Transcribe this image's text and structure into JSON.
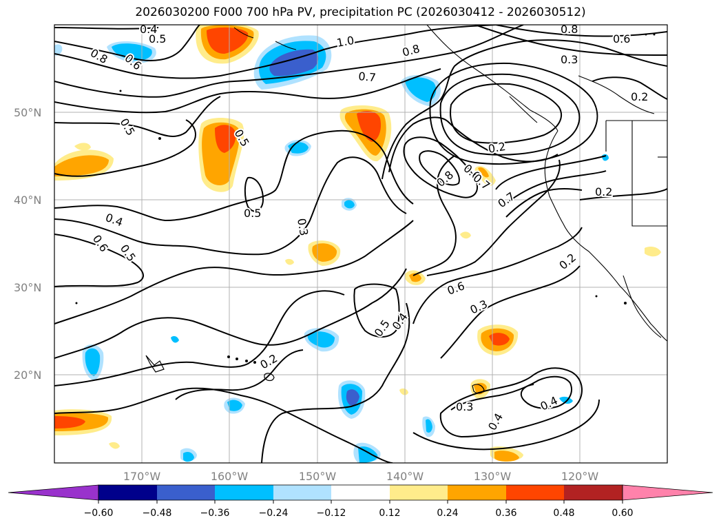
{
  "title": "2026030200 F000 700 hPa PV, precipitation PC (2026030412 - 2026030512)",
  "lat_labels": [
    "50°N",
    "40°N",
    "30°N",
    "20°N"
  ],
  "lon_labels": [
    "170°W",
    "160°W",
    "150°W",
    "140°W",
    "130°W",
    "120°W"
  ],
  "colorbar": {
    "ticks": [
      "−0.60",
      "−0.48",
      "−0.36",
      "−0.24",
      "−0.12",
      "0.12",
      "0.24",
      "0.36",
      "0.48",
      "0.60"
    ],
    "colors": [
      "#9932cc",
      "#00008b",
      "#3a5fcd",
      "#00bfff",
      "#b0e2ff",
      "#ffffff",
      "#ffec8b",
      "#ffa500",
      "#ff4500",
      "#b22222",
      "#ff82ab"
    ]
  },
  "contour_labels": [
    "0.4",
    "0.5",
    "0.8",
    "0.6",
    "1.0",
    "0.8",
    "0.8",
    "0.6",
    "0.3",
    "0.7",
    "0.2",
    "0.5",
    "0.5",
    "0.2",
    "0.8",
    "0.6",
    "0.7",
    "0.2",
    "0.7",
    "0.5",
    "0.4",
    "0.6",
    "0.5",
    "0.3",
    "0.2",
    "0.6",
    "0.3",
    "0.5",
    "0.4",
    "0.2",
    "0.3",
    "0.4",
    "0.4"
  ],
  "palette": {
    "pos1": "#ffec8b",
    "pos2": "#ffa500",
    "pos3": "#ff4500",
    "neg1": "#b0e2ff",
    "neg2": "#00bfff",
    "neg3": "#3a5fcd",
    "contour": "#000000",
    "grid": "#b0b0b0"
  }
}
